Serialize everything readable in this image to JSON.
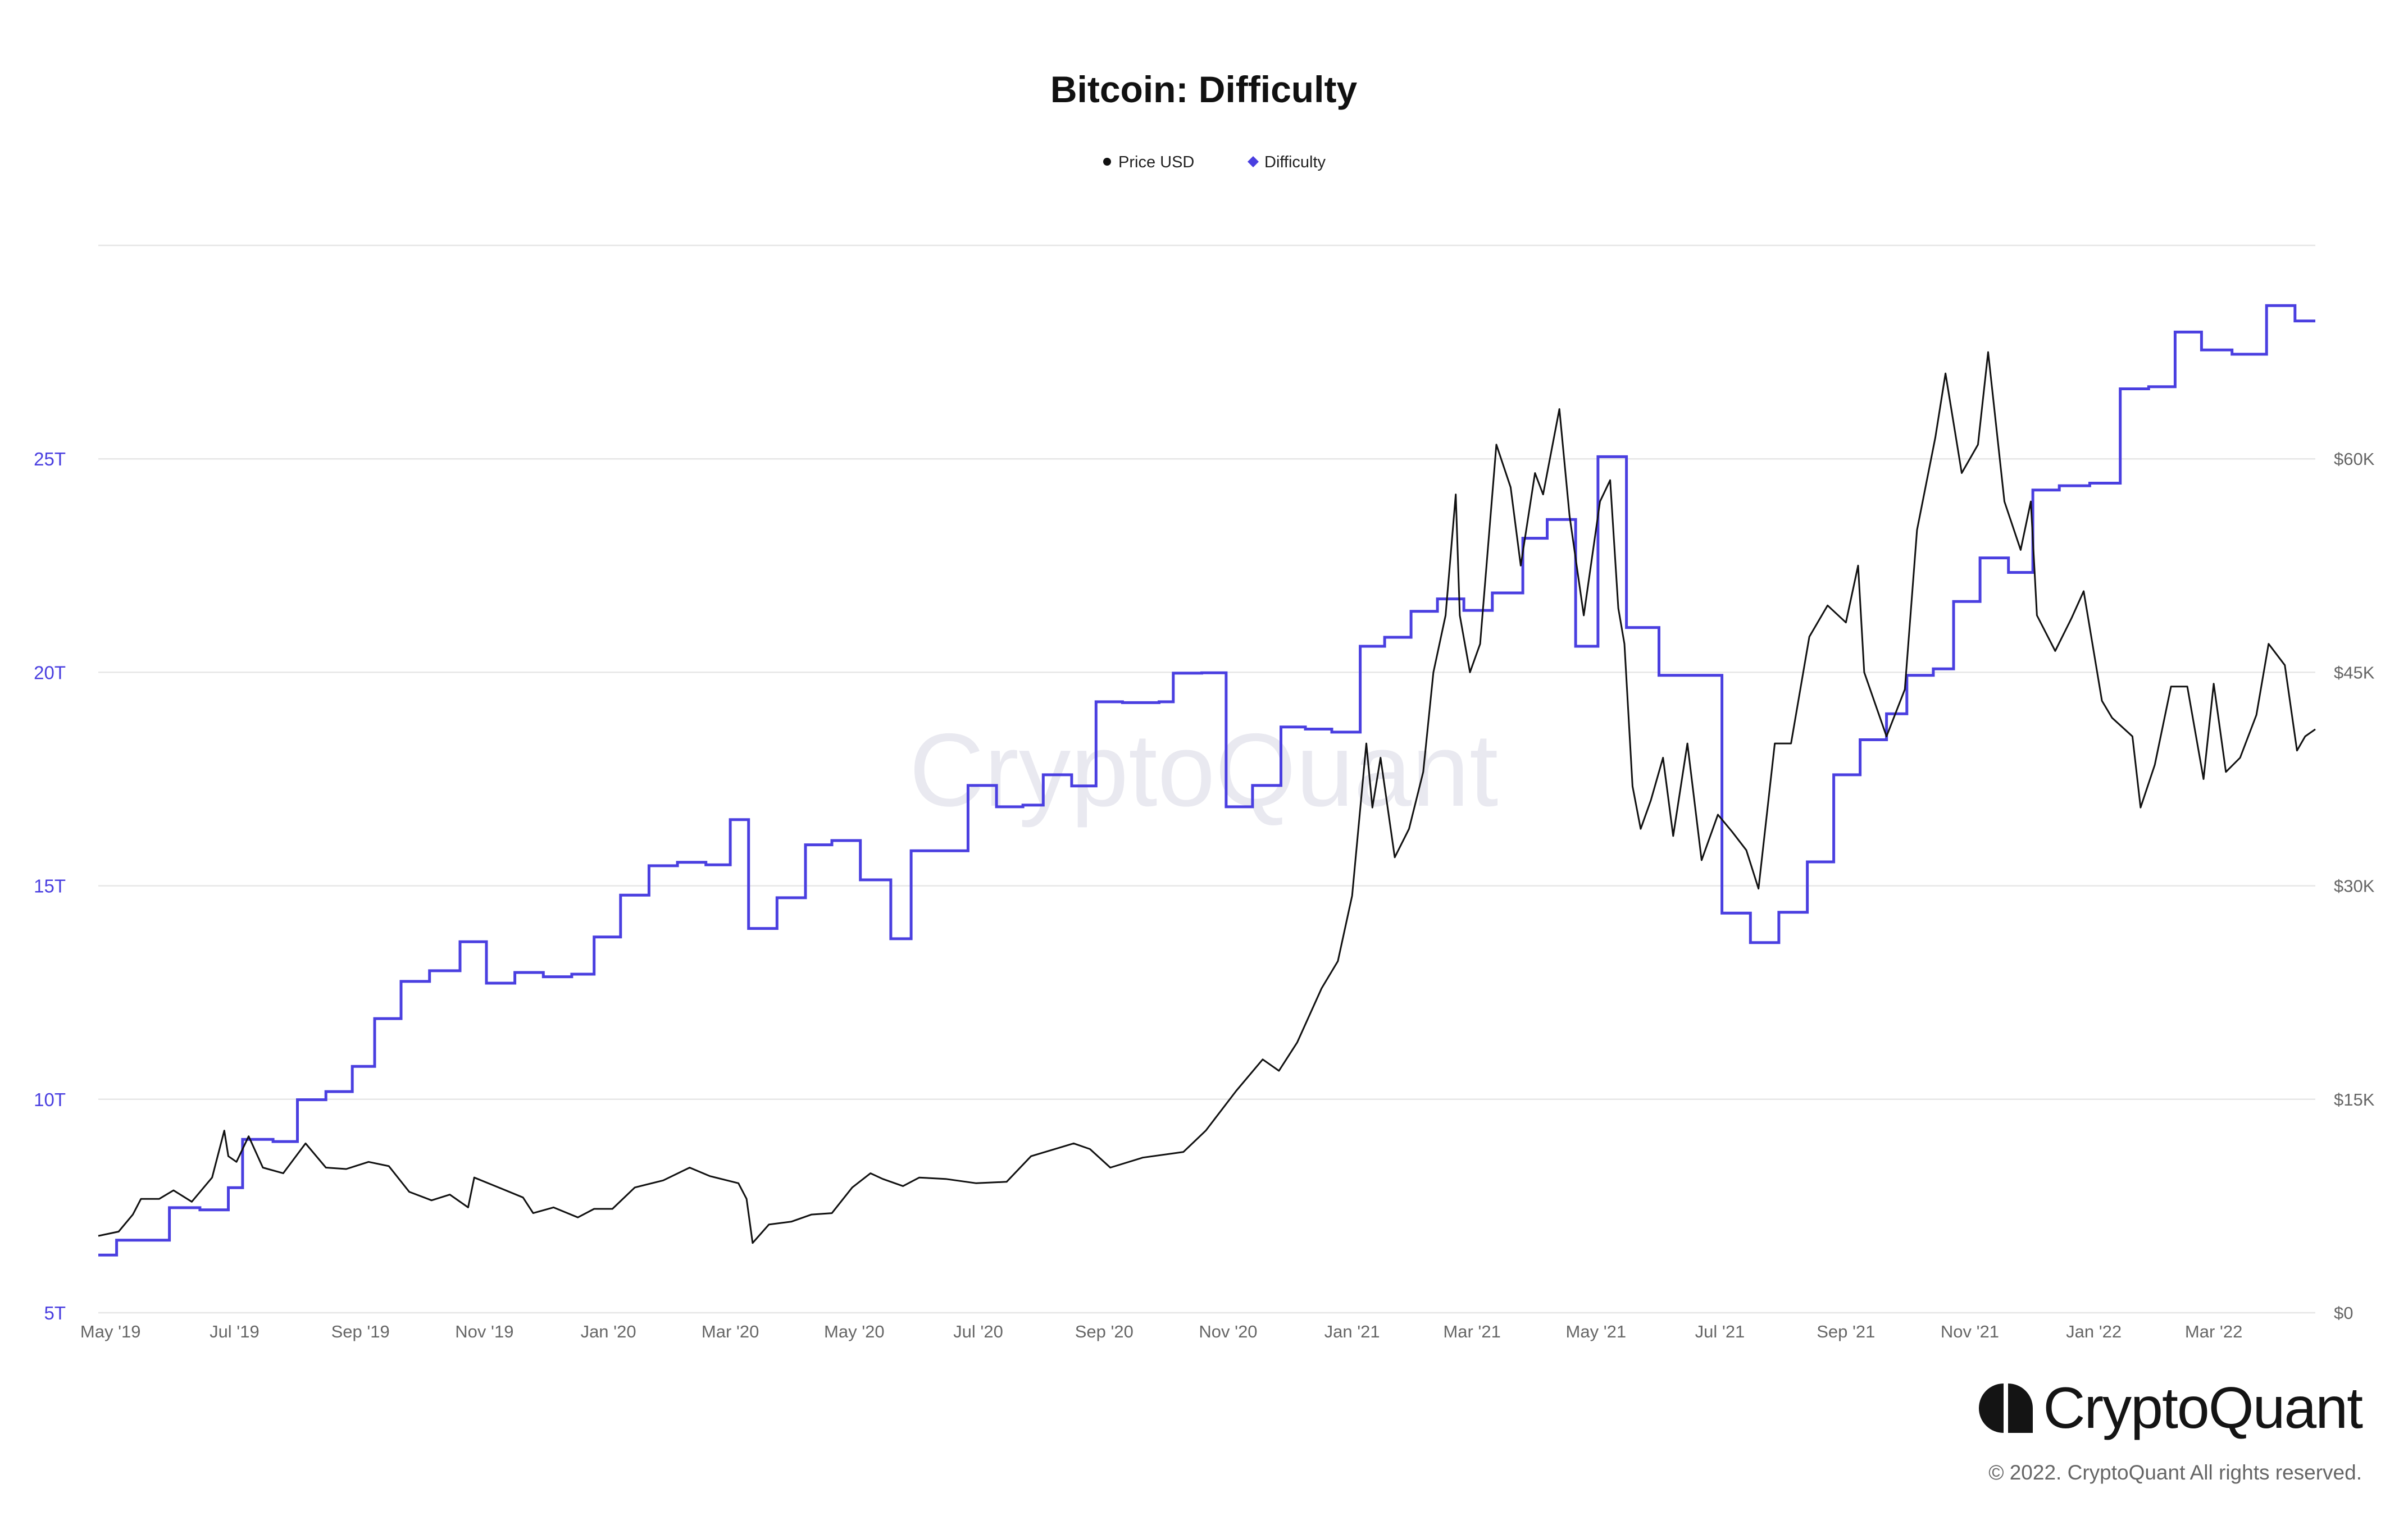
{
  "chart_data": {
    "type": "line",
    "title": "Bitcoin: Difficulty",
    "watermark": "CryptoQuant",
    "legend": [
      {
        "name": "Price USD",
        "color": "#111111",
        "marker": "circle"
      },
      {
        "name": "Difficulty",
        "color": "#4a3fe0",
        "marker": "diamond"
      }
    ],
    "legend_position": "top-center",
    "grid": true,
    "x_axis": {
      "type": "date",
      "range": [
        "2019-04-25",
        "2022-04-20"
      ],
      "ticks": [
        {
          "date": "2019-05-01",
          "label": "May '19"
        },
        {
          "date": "2019-07-01",
          "label": "Jul '19"
        },
        {
          "date": "2019-09-01",
          "label": "Sep '19"
        },
        {
          "date": "2019-11-01",
          "label": "Nov '19"
        },
        {
          "date": "2020-01-01",
          "label": "Jan '20"
        },
        {
          "date": "2020-03-01",
          "label": "Mar '20"
        },
        {
          "date": "2020-05-01",
          "label": "May '20"
        },
        {
          "date": "2020-07-01",
          "label": "Jul '20"
        },
        {
          "date": "2020-09-01",
          "label": "Sep '20"
        },
        {
          "date": "2020-11-01",
          "label": "Nov '20"
        },
        {
          "date": "2021-01-01",
          "label": "Jan '21"
        },
        {
          "date": "2021-03-01",
          "label": "Mar '21"
        },
        {
          "date": "2021-05-01",
          "label": "May '21"
        },
        {
          "date": "2021-07-01",
          "label": "Jul '21"
        },
        {
          "date": "2021-09-01",
          "label": "Sep '21"
        },
        {
          "date": "2021-11-01",
          "label": "Nov '21"
        },
        {
          "date": "2022-01-01",
          "label": "Jan '22"
        },
        {
          "date": "2022-03-01",
          "label": "Mar '22"
        }
      ]
    },
    "y_left": {
      "series": "Difficulty",
      "range": [
        5,
        30
      ],
      "unit": "T",
      "ticks": [
        {
          "value": 5,
          "label": "5T"
        },
        {
          "value": 10,
          "label": "10T"
        },
        {
          "value": 15,
          "label": "15T"
        },
        {
          "value": 20,
          "label": "20T"
        },
        {
          "value": 25,
          "label": "25T"
        }
      ]
    },
    "y_right": {
      "series": "Price USD",
      "range": [
        0,
        75000
      ],
      "ticks": [
        {
          "value": 0,
          "label": "$0"
        },
        {
          "value": 15000,
          "label": "$15K"
        },
        {
          "value": 30000,
          "label": "$30K"
        },
        {
          "value": 45000,
          "label": "$45K"
        },
        {
          "value": 60000,
          "label": "$60K"
        }
      ]
    },
    "series": [
      {
        "name": "Difficulty",
        "axis": "left",
        "step": true,
        "points": [
          [
            "2019-04-25",
            6.35
          ],
          [
            "2019-05-04",
            6.7
          ],
          [
            "2019-05-30",
            7.46
          ],
          [
            "2019-06-14",
            7.41
          ],
          [
            "2019-06-28",
            7.93
          ],
          [
            "2019-07-05",
            9.06
          ],
          [
            "2019-07-20",
            9.01
          ],
          [
            "2019-08-01",
            9.99
          ],
          [
            "2019-08-15",
            10.18
          ],
          [
            "2019-08-28",
            10.77
          ],
          [
            "2019-09-08",
            11.89
          ],
          [
            "2019-09-21",
            12.76
          ],
          [
            "2019-10-05",
            13.01
          ],
          [
            "2019-10-20",
            13.69
          ],
          [
            "2019-11-02",
            12.72
          ],
          [
            "2019-11-16",
            12.97
          ],
          [
            "2019-11-30",
            12.87
          ],
          [
            "2019-12-14",
            12.93
          ],
          [
            "2019-12-25",
            13.8
          ],
          [
            "2020-01-07",
            14.78
          ],
          [
            "2020-01-21",
            15.47
          ],
          [
            "2020-02-04",
            15.55
          ],
          [
            "2020-02-18",
            15.49
          ],
          [
            "2020-03-01",
            16.55
          ],
          [
            "2020-03-10",
            14.0
          ],
          [
            "2020-03-24",
            14.72
          ],
          [
            "2020-04-07",
            15.96
          ],
          [
            "2020-04-20",
            16.06
          ],
          [
            "2020-05-04",
            15.14
          ],
          [
            "2020-05-19",
            13.76
          ],
          [
            "2020-05-29",
            15.82
          ],
          [
            "2020-06-13",
            15.82
          ],
          [
            "2020-06-26",
            17.35
          ],
          [
            "2020-07-10",
            16.85
          ],
          [
            "2020-07-23",
            16.89
          ],
          [
            "2020-08-02",
            17.6
          ],
          [
            "2020-08-16",
            17.34
          ],
          [
            "2020-08-28",
            19.31
          ],
          [
            "2020-09-10",
            19.29
          ],
          [
            "2020-09-28",
            19.31
          ],
          [
            "2020-10-05",
            19.98
          ],
          [
            "2020-10-19",
            19.99
          ],
          [
            "2020-10-31",
            16.85
          ],
          [
            "2020-11-13",
            17.35
          ],
          [
            "2020-11-27",
            18.72
          ],
          [
            "2020-12-09",
            18.67
          ],
          [
            "2020-12-22",
            18.6
          ],
          [
            "2021-01-05",
            20.61
          ],
          [
            "2021-01-17",
            20.82
          ],
          [
            "2021-01-30",
            21.43
          ],
          [
            "2021-02-12",
            21.72
          ],
          [
            "2021-02-25",
            21.45
          ],
          [
            "2021-03-11",
            21.86
          ],
          [
            "2021-03-26",
            23.14
          ],
          [
            "2021-04-07",
            23.58
          ],
          [
            "2021-04-21",
            20.61
          ],
          [
            "2021-05-02",
            25.05
          ],
          [
            "2021-05-16",
            21.05
          ],
          [
            "2021-06-01",
            19.93
          ],
          [
            "2021-06-18",
            19.93
          ],
          [
            "2021-07-02",
            14.36
          ],
          [
            "2021-07-16",
            13.67
          ],
          [
            "2021-07-30",
            14.38
          ],
          [
            "2021-08-13",
            15.56
          ],
          [
            "2021-08-26",
            17.6
          ],
          [
            "2021-09-08",
            18.42
          ],
          [
            "2021-09-21",
            19.03
          ],
          [
            "2021-10-01",
            19.93
          ],
          [
            "2021-10-14",
            20.08
          ],
          [
            "2021-10-24",
            21.66
          ],
          [
            "2021-11-06",
            22.68
          ],
          [
            "2021-11-20",
            22.34
          ],
          [
            "2021-12-02",
            24.27
          ],
          [
            "2021-12-15",
            24.37
          ],
          [
            "2021-12-30",
            24.43
          ],
          [
            "2022-01-14",
            26.64
          ],
          [
            "2022-01-28",
            26.69
          ],
          [
            "2022-02-10",
            27.97
          ],
          [
            "2022-02-23",
            27.55
          ],
          [
            "2022-03-10",
            27.45
          ],
          [
            "2022-03-27",
            28.59
          ],
          [
            "2022-04-10",
            28.23
          ],
          [
            "2022-04-20",
            28.23
          ]
        ]
      },
      {
        "name": "Price USD",
        "axis": "right",
        "step": false,
        "points": [
          [
            "2019-04-25",
            5400
          ],
          [
            "2019-05-05",
            5700
          ],
          [
            "2019-05-12",
            6900
          ],
          [
            "2019-05-16",
            8000
          ],
          [
            "2019-05-25",
            8000
          ],
          [
            "2019-06-01",
            8600
          ],
          [
            "2019-06-10",
            7800
          ],
          [
            "2019-06-20",
            9500
          ],
          [
            "2019-06-26",
            12800
          ],
          [
            "2019-06-28",
            11000
          ],
          [
            "2019-07-02",
            10600
          ],
          [
            "2019-07-08",
            12400
          ],
          [
            "2019-07-15",
            10200
          ],
          [
            "2019-07-25",
            9800
          ],
          [
            "2019-08-05",
            11900
          ],
          [
            "2019-08-15",
            10200
          ],
          [
            "2019-08-25",
            10100
          ],
          [
            "2019-09-05",
            10600
          ],
          [
            "2019-09-15",
            10300
          ],
          [
            "2019-09-25",
            8500
          ],
          [
            "2019-10-06",
            7900
          ],
          [
            "2019-10-15",
            8300
          ],
          [
            "2019-10-24",
            7400
          ],
          [
            "2019-10-27",
            9500
          ],
          [
            "2019-11-08",
            8800
          ],
          [
            "2019-11-20",
            8100
          ],
          [
            "2019-11-25",
            7000
          ],
          [
            "2019-12-05",
            7400
          ],
          [
            "2019-12-17",
            6700
          ],
          [
            "2019-12-25",
            7300
          ],
          [
            "2020-01-03",
            7300
          ],
          [
            "2020-01-14",
            8800
          ],
          [
            "2020-01-28",
            9300
          ],
          [
            "2020-02-10",
            10200
          ],
          [
            "2020-02-20",
            9600
          ],
          [
            "2020-03-05",
            9100
          ],
          [
            "2020-03-09",
            8000
          ],
          [
            "2020-03-12",
            4900
          ],
          [
            "2020-03-20",
            6200
          ],
          [
            "2020-03-31",
            6400
          ],
          [
            "2020-04-10",
            6900
          ],
          [
            "2020-04-20",
            7000
          ],
          [
            "2020-04-30",
            8800
          ],
          [
            "2020-05-09",
            9800
          ],
          [
            "2020-05-15",
            9400
          ],
          [
            "2020-05-25",
            8900
          ],
          [
            "2020-06-02",
            9500
          ],
          [
            "2020-06-15",
            9400
          ],
          [
            "2020-06-30",
            9100
          ],
          [
            "2020-07-15",
            9200
          ],
          [
            "2020-07-27",
            11000
          ],
          [
            "2020-08-17",
            11900
          ],
          [
            "2020-08-25",
            11500
          ],
          [
            "2020-09-04",
            10200
          ],
          [
            "2020-09-20",
            10900
          ],
          [
            "2020-10-10",
            11300
          ],
          [
            "2020-10-21",
            12800
          ],
          [
            "2020-11-05",
            15600
          ],
          [
            "2020-11-18",
            17800
          ],
          [
            "2020-11-26",
            17000
          ],
          [
            "2020-12-05",
            19000
          ],
          [
            "2020-12-17",
            22800
          ],
          [
            "2020-12-25",
            24700
          ],
          [
            "2021-01-01",
            29300
          ],
          [
            "2021-01-08",
            40000
          ],
          [
            "2021-01-11",
            35500
          ],
          [
            "2021-01-15",
            39000
          ],
          [
            "2021-01-22",
            32000
          ],
          [
            "2021-01-29",
            34000
          ],
          [
            "2021-02-05",
            38000
          ],
          [
            "2021-02-10",
            45000
          ],
          [
            "2021-02-16",
            49000
          ],
          [
            "2021-02-21",
            57500
          ],
          [
            "2021-02-23",
            49000
          ],
          [
            "2021-02-28",
            45000
          ],
          [
            "2021-03-05",
            47000
          ],
          [
            "2021-03-13",
            61000
          ],
          [
            "2021-03-20",
            58000
          ],
          [
            "2021-03-25",
            52500
          ],
          [
            "2021-04-01",
            59000
          ],
          [
            "2021-04-05",
            57500
          ],
          [
            "2021-04-13",
            63500
          ],
          [
            "2021-04-18",
            56000
          ],
          [
            "2021-04-25",
            49000
          ],
          [
            "2021-05-03",
            57000
          ],
          [
            "2021-05-08",
            58500
          ],
          [
            "2021-05-12",
            49500
          ],
          [
            "2021-05-15",
            47000
          ],
          [
            "2021-05-19",
            37000
          ],
          [
            "2021-05-23",
            34000
          ],
          [
            "2021-05-28",
            36000
          ],
          [
            "2021-06-03",
            39000
          ],
          [
            "2021-06-08",
            33500
          ],
          [
            "2021-06-15",
            40000
          ],
          [
            "2021-06-22",
            31800
          ],
          [
            "2021-06-30",
            35000
          ],
          [
            "2021-07-07",
            33800
          ],
          [
            "2021-07-14",
            32500
          ],
          [
            "2021-07-20",
            29800
          ],
          [
            "2021-07-28",
            40000
          ],
          [
            "2021-08-05",
            40000
          ],
          [
            "2021-08-14",
            47500
          ],
          [
            "2021-08-23",
            49700
          ],
          [
            "2021-09-01",
            48500
          ],
          [
            "2021-09-07",
            52500
          ],
          [
            "2021-09-10",
            45000
          ],
          [
            "2021-09-21",
            40500
          ],
          [
            "2021-09-30",
            43800
          ],
          [
            "2021-10-06",
            55000
          ],
          [
            "2021-10-15",
            61500
          ],
          [
            "2021-10-20",
            66000
          ],
          [
            "2021-10-28",
            59000
          ],
          [
            "2021-11-05",
            61000
          ],
          [
            "2021-11-10",
            67500
          ],
          [
            "2021-11-18",
            57000
          ],
          [
            "2021-11-26",
            53600
          ],
          [
            "2021-12-01",
            57000
          ],
          [
            "2021-12-04",
            49000
          ],
          [
            "2021-12-13",
            46500
          ],
          [
            "2021-12-21",
            48800
          ],
          [
            "2021-12-27",
            50700
          ],
          [
            "2022-01-05",
            43000
          ],
          [
            "2022-01-10",
            41800
          ],
          [
            "2022-01-20",
            40500
          ],
          [
            "2022-01-24",
            35500
          ],
          [
            "2022-01-31",
            38500
          ],
          [
            "2022-02-08",
            44000
          ],
          [
            "2022-02-16",
            44000
          ],
          [
            "2022-02-24",
            37500
          ],
          [
            "2022-03-01",
            44200
          ],
          [
            "2022-03-07",
            38000
          ],
          [
            "2022-03-14",
            39000
          ],
          [
            "2022-03-22",
            42000
          ],
          [
            "2022-03-28",
            47000
          ],
          [
            "2022-04-05",
            45500
          ],
          [
            "2022-04-11",
            39500
          ],
          [
            "2022-04-15",
            40500
          ],
          [
            "2022-04-20",
            41000
          ]
        ]
      }
    ]
  },
  "branding": {
    "logo_text": "CryptoQuant",
    "copyright": "© 2022. CryptoQuant All rights reserved."
  }
}
